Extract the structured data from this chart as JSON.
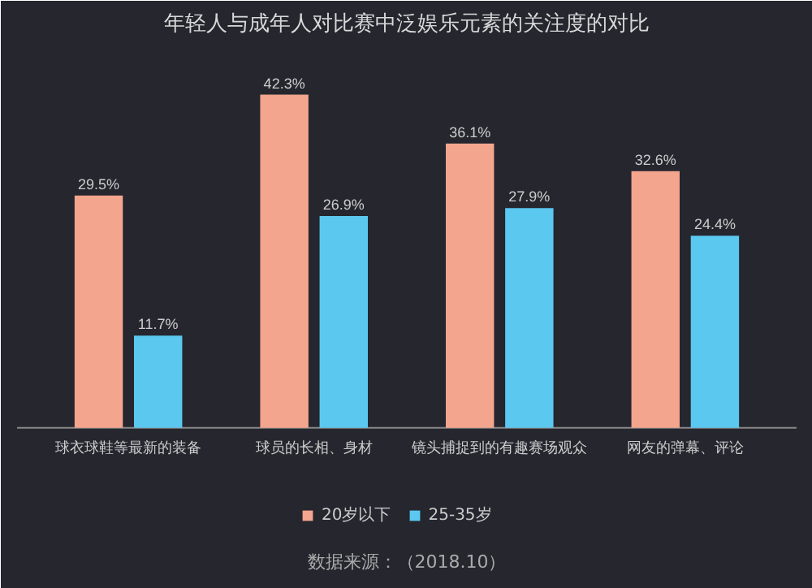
{
  "chart_data": {
    "type": "bar",
    "title": "年轻人与成年人对比赛中泛娱乐元素的关注度的对比",
    "categories": [
      "球衣球鞋等最新的装备",
      "球员的长相、身材",
      "镜头捕捉到的有趣赛场观众",
      "网友的弹幕、评论"
    ],
    "series": [
      {
        "name": "20岁以下",
        "color": "#f4a58e",
        "values": [
          29.5,
          42.3,
          36.1,
          32.6
        ],
        "value_labels": [
          "29.5%",
          "42.3%",
          "36.1%",
          "32.6%"
        ]
      },
      {
        "name": "25-35岁",
        "color": "#5bc8f0",
        "values": [
          11.7,
          26.9,
          27.9,
          24.4
        ],
        "value_labels": [
          "11.7%",
          "26.9%",
          "27.9%",
          "24.4%"
        ]
      }
    ],
    "legend": "bottom",
    "annotations": [
      "数据来源：（2018.10）"
    ]
  }
}
